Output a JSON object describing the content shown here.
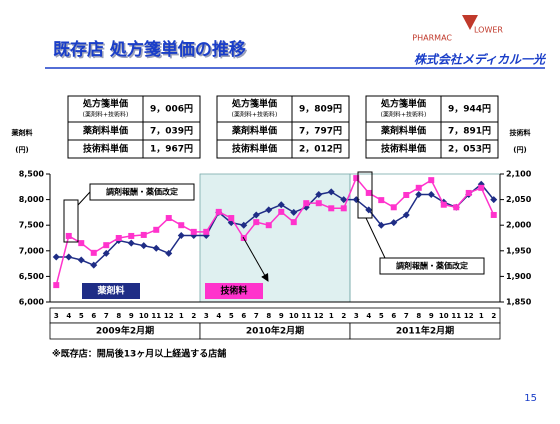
{
  "header": {
    "title": "既存店 処方箋単価の推移",
    "logo_left": "PHARMAC",
    "logo_right": "LOWER",
    "company": "株式会社メディカル一光"
  },
  "summary": [
    {
      "rows": [
        {
          "label": "処方箋単価",
          "sub": "(薬剤料+技術料)",
          "value": "9，006円"
        },
        {
          "label": "薬剤料単価",
          "value": "7，039円"
        },
        {
          "label": "技術料単価",
          "value": "1，967円"
        }
      ]
    },
    {
      "rows": [
        {
          "label": "処方箋単価",
          "sub": "(薬剤料+技術料)",
          "value": "9，809円"
        },
        {
          "label": "薬剤料単価",
          "value": "7，797円"
        },
        {
          "label": "技術料単価",
          "value": "2，012円"
        }
      ]
    },
    {
      "rows": [
        {
          "label": "処方箋単価",
          "sub": "(薬剤料+技術料)",
          "value": "9，944円"
        },
        {
          "label": "薬剤料単価",
          "value": "7，891円"
        },
        {
          "label": "技術料単価",
          "value": "2，053円"
        }
      ]
    }
  ],
  "chart_data": {
    "type": "line",
    "ylabel": "薬剤料",
    "y2label": "技術料",
    "unit": "(円)",
    "categories": [
      "3",
      "4",
      "5",
      "6",
      "7",
      "8",
      "9",
      "10",
      "11",
      "12",
      "1",
      "2",
      "3",
      "4",
      "5",
      "6",
      "7",
      "8",
      "9",
      "10",
      "11",
      "12",
      "1",
      "2",
      "3",
      "4",
      "5",
      "6",
      "7",
      "8",
      "9",
      "10",
      "11",
      "12",
      "1",
      "2"
    ],
    "groups": [
      "2009年2月期",
      "2010年2月期",
      "2011年2月期"
    ],
    "ylim": [
      6000,
      8500
    ],
    "yticks": [
      {
        "value": 6000,
        "label": "6,000"
      },
      {
        "value": 6500,
        "label": "6,500"
      },
      {
        "value": 7000,
        "label": "7,000"
      },
      {
        "value": 7500,
        "label": "7,500"
      },
      {
        "value": 8000,
        "label": "8,000"
      },
      {
        "value": 8500,
        "label": "8,500"
      }
    ],
    "y2lim": [
      1850,
      2100
    ],
    "y2ticks": [
      {
        "value": 1850,
        "label": "1,850"
      },
      {
        "value": 1900,
        "label": "1,900"
      },
      {
        "value": 1950,
        "label": "1,950"
      },
      {
        "value": 2000,
        "label": "2,000"
      },
      {
        "value": 2050,
        "label": "2,050"
      },
      {
        "value": 2100,
        "label": "2,100"
      }
    ],
    "series": [
      {
        "name": "薬剤料",
        "color": "#1f2d86",
        "marker": "diamond",
        "values": [
          6880,
          6880,
          6820,
          6720,
          6950,
          7200,
          7150,
          7100,
          7050,
          6950,
          7300,
          7300,
          7300,
          7750,
          7550,
          7500,
          7700,
          7800,
          7900,
          7750,
          7850,
          8100,
          8150,
          8000,
          8000,
          7800,
          7500,
          7550,
          7700,
          8100,
          8100,
          7950,
          7850,
          8100,
          8300,
          8000
        ]
      },
      {
        "name": "技術料",
        "color": "#ff33cc",
        "marker": "square",
        "axis": "y2",
        "values": [
          1883,
          1979,
          1965,
          1946,
          1961,
          1975,
          1979,
          1981,
          1991,
          2014,
          2000,
          1987,
          1987,
          2026,
          2014,
          1975,
          2006,
          2000,
          2026,
          2006,
          2043,
          2043,
          2033,
          2033,
          2092,
          2063,
          2049,
          2035,
          2059,
          2073,
          2088,
          2040,
          2035,
          2063,
          2073,
          2020
        ]
      }
    ],
    "annotations": [
      "調剤報酬・薬価改定",
      "調剤報酬・薬価改定"
    ]
  },
  "footnote": "※既存店：開局後13ヶ月以上経過する店舗",
  "page_number": "15"
}
